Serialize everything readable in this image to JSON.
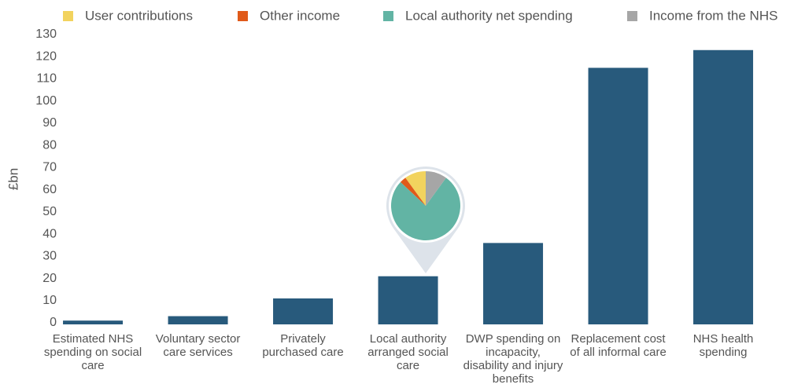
{
  "chart_data": [
    {
      "type": "bar",
      "y_label": "£bn",
      "categories": [
        "Estimated NHS spending on social care",
        "Voluntary sector care services",
        "Privately purchased care",
        "Local authority arranged social care",
        "DWP spending on incapacity, disability and injury benefits",
        "Replacement cost of all informal care",
        "NHS health spending"
      ],
      "values": [
        1,
        3,
        11,
        21,
        36,
        115,
        123
      ],
      "color": "#285a7c",
      "ylim": [
        0,
        130
      ],
      "yticks": [
        0,
        10,
        20,
        30,
        40,
        50,
        60,
        70,
        80,
        90,
        100,
        110,
        120,
        130
      ],
      "grid": false
    },
    {
      "type": "pie",
      "categories": [
        "User contributions",
        "Other income",
        "Local authority net spending",
        "Income from the NHS"
      ],
      "values": [
        10,
        3,
        77,
        10
      ],
      "colors": [
        "#f2d35e",
        "#e05a1a",
        "#62b4a4",
        "#a6a6a6"
      ]
    }
  ]
}
